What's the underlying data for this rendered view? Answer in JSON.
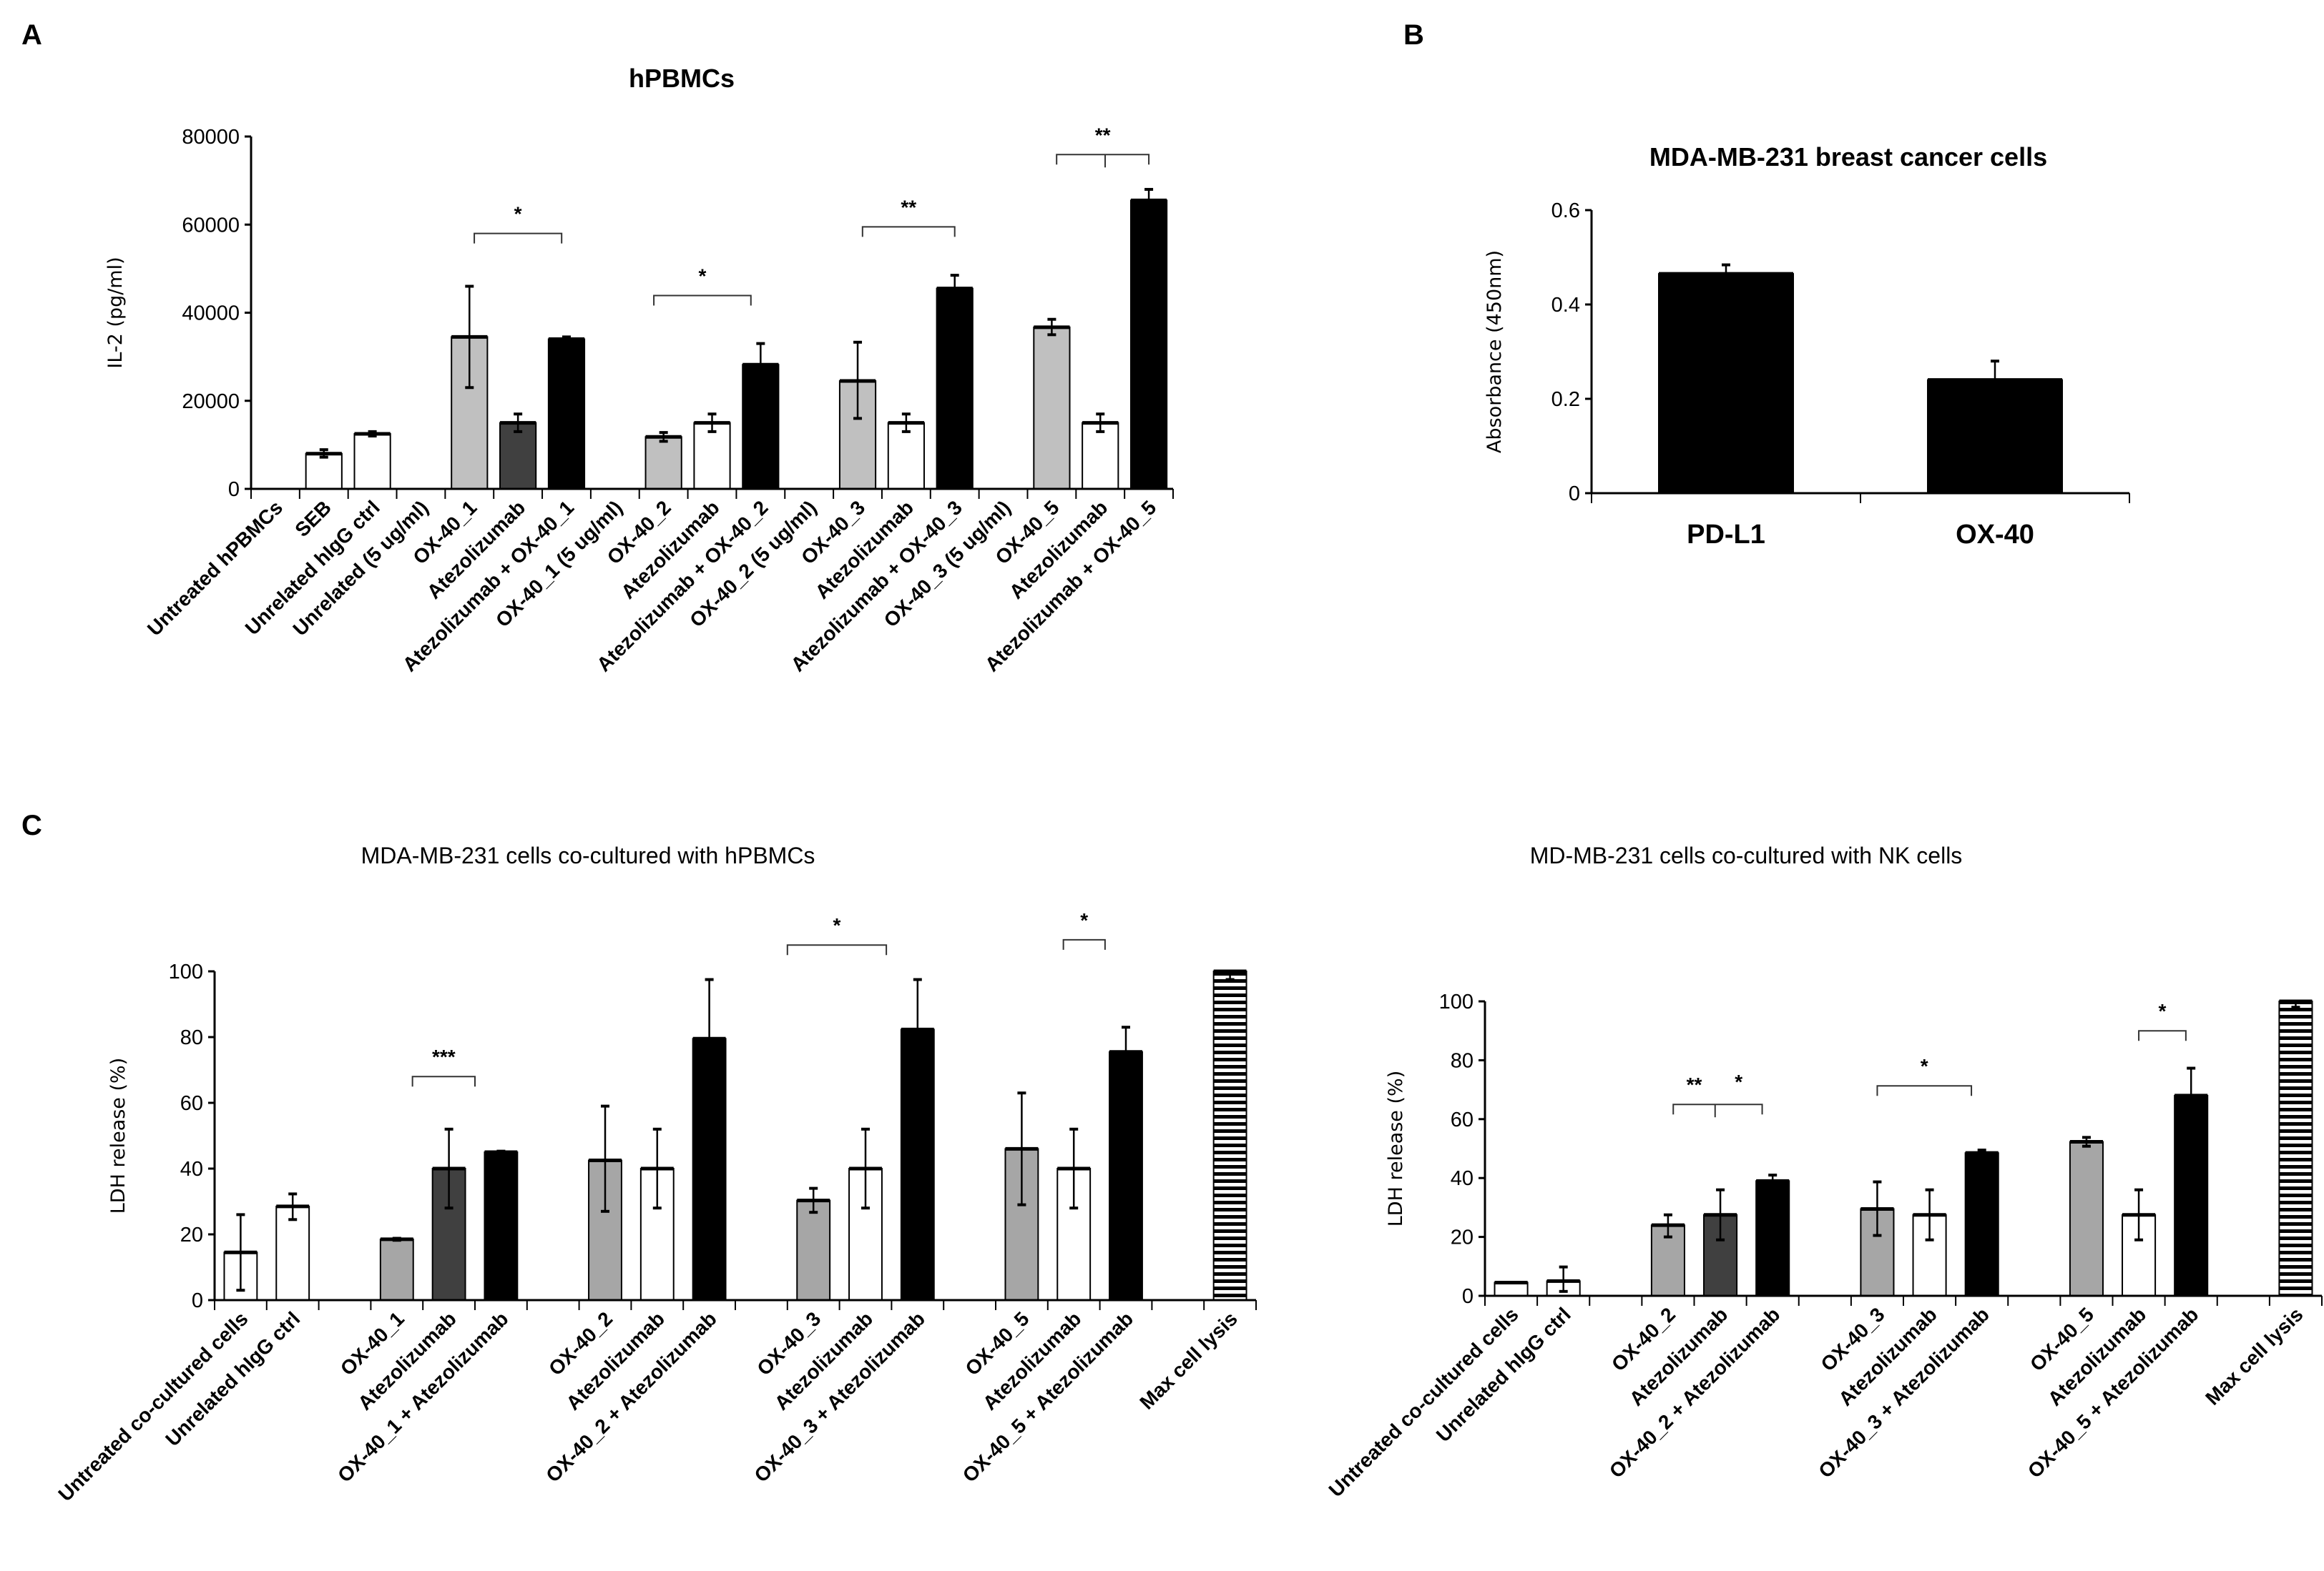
{
  "panels": {
    "A": "A",
    "B": "B",
    "C": "C"
  },
  "colors": {
    "white": "#ffffff",
    "light": "#c0c0c0",
    "medium": "#a6a6a6",
    "dark": "#404040",
    "black": "#000000"
  },
  "chart_data": [
    {
      "id": "A",
      "type": "bar",
      "title": "hPBMCs",
      "ylabel": "IL-2 (pg/ml)",
      "xlabel": "",
      "ylim": [
        0,
        80000
      ],
      "yticks": [
        "0",
        "20000",
        "40000",
        "60000",
        "80000"
      ],
      "ytick_values": [
        0,
        20000,
        40000,
        60000,
        80000
      ],
      "categories": [
        "Untreated hPBMCs",
        "SEB",
        "Unrelated hIgG ctrl",
        "Unrelated (5 ug/ml)",
        "OX-40_1",
        "Atezolizumab",
        "Atezolizumab + OX-40_1",
        "OX-40_1 (5 ug/ml)",
        "OX-40_2",
        "Atezolizumab",
        "Atezolizumab + OX-40_2",
        "OX-40_2 (5 ug/ml)",
        "OX-40_3",
        "Atezolizumab",
        "Atezolizumab + OX-40_3",
        "OX-40_3 (5 ug/ml)",
        "OX-40_5",
        "Atezolizumab",
        "Atezolizumab + OX-40_5"
      ],
      "values": [
        null,
        8000,
        12500,
        null,
        34500,
        15000,
        34000,
        null,
        11800,
        15000,
        28200,
        null,
        24500,
        15000,
        45500,
        null,
        36700,
        15000,
        65500
      ],
      "err_low": [
        null,
        7200,
        12000,
        null,
        23000,
        13000,
        33700,
        null,
        10800,
        13000,
        28200,
        null,
        16000,
        13000,
        45500,
        null,
        35000,
        13000,
        65500
      ],
      "err_high": [
        null,
        8900,
        13000,
        null,
        46000,
        17000,
        34500,
        null,
        12800,
        17000,
        33000,
        null,
        33300,
        17000,
        48500,
        null,
        38500,
        17000,
        68000
      ],
      "fills": [
        "white",
        "white",
        "white",
        "white",
        "light",
        "dark",
        "black",
        "white",
        "light",
        "white",
        "black",
        "white",
        "light",
        "white",
        "black",
        "white",
        "light",
        "white",
        "black"
      ],
      "significance": [
        {
          "label": "*",
          "from": 4.6,
          "to": 6.4,
          "y": 58000
        },
        {
          "label": "*",
          "from": 8.3,
          "to": 10.3,
          "y": 43900
        },
        {
          "label": "**",
          "from": 12.6,
          "to": 14.5,
          "y": 59500
        },
        {
          "label": "**",
          "from": 16.6,
          "to": 18.5,
          "mid": 17.6,
          "y": 75900
        }
      ]
    },
    {
      "id": "B",
      "type": "bar",
      "title": "MDA-MB-231 breast cancer cells",
      "ylabel": "Absorbance (450nm)",
      "xlabel": "",
      "ylim": [
        0,
        0.6
      ],
      "yticks": [
        "0",
        "0.2",
        "0.4",
        "0.6"
      ],
      "ytick_values": [
        0,
        0.2,
        0.4,
        0.6
      ],
      "categories": [
        "PD-L1",
        "OX-40"
      ],
      "values": [
        0.465,
        0.24
      ],
      "err_low": [
        0.465,
        0.24
      ],
      "err_high": [
        0.484,
        0.28
      ],
      "fills": [
        "black",
        "black"
      ],
      "significance": []
    },
    {
      "id": "C1",
      "type": "bar",
      "title": "MDA-MB-231 cells co-cultured with hPBMCs",
      "ylabel": "LDH release (%)",
      "xlabel": "",
      "ylim": [
        0,
        100
      ],
      "yticks": [
        "0",
        "20",
        "40",
        "60",
        "80",
        "100"
      ],
      "ytick_values": [
        0,
        20,
        40,
        60,
        80,
        100
      ],
      "categories": [
        "Untreated co-cultured cells",
        "Unrelated hIgG ctrl",
        "",
        "OX-40_1",
        "Atezolizumab",
        "OX-40_1 + Atezolizumab",
        "",
        "OX-40_2",
        "Atezolizumab",
        "OX-40_2 + Atezolizumab",
        "",
        "OX-40_3",
        "Atezolizumab",
        "OX-40_3 + Atezolizumab",
        "",
        "OX-40_5",
        "Atezolizumab",
        "OX-40_5 + Atezolizumab",
        "",
        "Max cell lysis"
      ],
      "values": [
        14.5,
        28.5,
        null,
        18.5,
        40,
        45,
        null,
        42.5,
        40,
        79.5,
        null,
        30.3,
        40,
        82.3,
        null,
        46,
        40,
        75.5,
        null,
        100
      ],
      "err_low": [
        3,
        24.5,
        null,
        18.2,
        28,
        44.8,
        null,
        27,
        28,
        79.5,
        null,
        26.7,
        28,
        82.3,
        null,
        29,
        28,
        75.5,
        null,
        97.5
      ],
      "err_high": [
        26,
        32.3,
        null,
        18.8,
        52,
        45.3,
        null,
        59,
        52,
        97.5,
        null,
        34,
        52,
        97.5,
        null,
        63,
        52,
        83,
        null,
        100
      ],
      "fills": [
        "white",
        "white",
        "white",
        "medium",
        "dark",
        "black",
        "white",
        "medium",
        "white",
        "black",
        "white",
        "medium",
        "white",
        "black",
        "white",
        "medium",
        "white",
        "black",
        "white",
        "hatch"
      ],
      "significance": [
        {
          "label": "***",
          "from": 3.8,
          "to": 5.0,
          "y": 68
        },
        {
          "label": "*",
          "from": 11.0,
          "to": 12.9,
          "y": 108
        },
        {
          "label": "*",
          "from": 16.3,
          "to": 17.1,
          "y": 109.6
        }
      ]
    },
    {
      "id": "C2",
      "type": "bar",
      "title": "MD-MB-231 cells co-cultured with NK cells",
      "ylabel": "LDH release (%)",
      "xlabel": "",
      "ylim": [
        0,
        100
      ],
      "yticks": [
        "0",
        "20",
        "40",
        "60",
        "80",
        "100"
      ],
      "ytick_values": [
        0,
        20,
        40,
        60,
        80,
        100
      ],
      "categories": [
        "Untreated co-cultured cells",
        "Unrelated hIgG ctrl",
        "",
        "OX-40_2",
        "Atezolizumab",
        "OX-40_2 + Atezolizumab",
        "",
        "OX-40_3",
        "Atezolizumab",
        "OX-40_3 + Atezolizumab",
        "",
        "OX-40_5",
        "Atezolizumab",
        "OX-40_5 + Atezolizumab",
        "",
        "Max cell lysis"
      ],
      "values": [
        4.5,
        5,
        null,
        24,
        27.5,
        39,
        null,
        29.5,
        27.5,
        48.5,
        null,
        52.3,
        27.5,
        68,
        null,
        100
      ],
      "err_low": [
        4.5,
        1.5,
        null,
        20,
        19,
        39,
        null,
        20.5,
        19,
        48.5,
        null,
        50.8,
        19,
        68,
        null,
        98
      ],
      "err_high": [
        4.5,
        9.8,
        null,
        27.5,
        36,
        41,
        null,
        38.7,
        36,
        49.5,
        null,
        53.8,
        36,
        77.3,
        null,
        100
      ],
      "fills": [
        "white",
        "white",
        "white",
        "medium",
        "dark",
        "black",
        "white",
        "medium",
        "white",
        "black",
        "white",
        "medium",
        "white",
        "black",
        "white",
        "hatch"
      ],
      "significance": [
        {
          "label": "**",
          "from": 3.6,
          "to": 5.3,
          "mid": 4.4,
          "y": 65,
          "label2": "*"
        },
        {
          "label": "*",
          "from": 7.5,
          "to": 9.3,
          "y": 71.3
        },
        {
          "label": "*",
          "from": 12.5,
          "to": 13.4,
          "y": 90
        }
      ]
    }
  ]
}
